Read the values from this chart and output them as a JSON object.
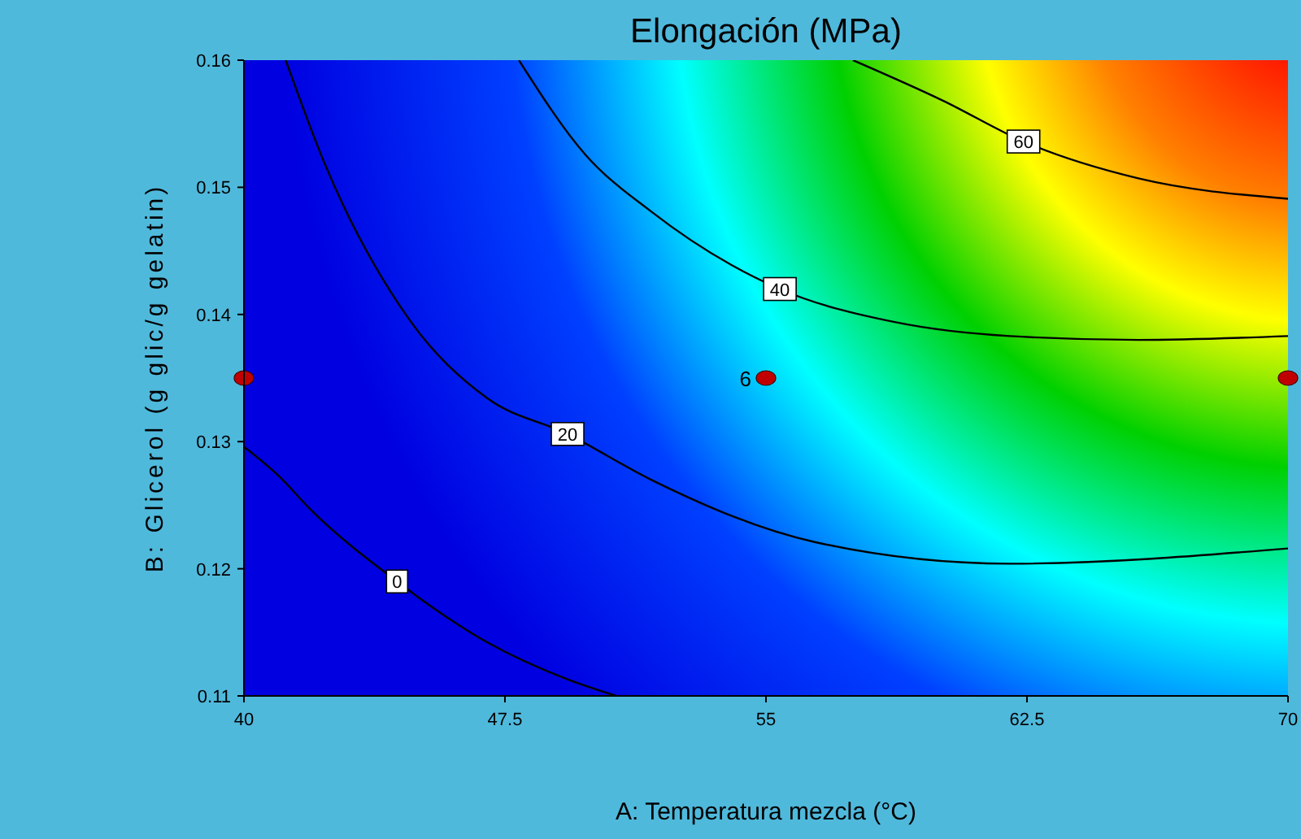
{
  "chart_data": {
    "type": "line",
    "title": "Elongación (MPa)",
    "xlabel": "A: Temperatura mezcla (°C)",
    "ylabel": "B: Glicerol (g glic/g gelatin)",
    "xlim": [
      40,
      70
    ],
    "ylim": [
      0.11,
      0.16
    ],
    "xticks": [
      40,
      47.5,
      55,
      62.5,
      70
    ],
    "yticks": [
      0.11,
      0.12,
      0.13,
      0.14,
      0.15,
      0.16
    ],
    "grid": false,
    "marker": "none",
    "line_style": "solid",
    "series": [
      {
        "name": "0",
        "color": "#000000",
        "x": [
          40,
          41,
          41.9,
          44.4,
          47,
          49.3,
          50.7
        ],
        "values": [
          0.1296,
          0.1273,
          0.1247,
          0.119,
          0.1142,
          0.1113,
          0.11
        ]
      },
      {
        "name": "20",
        "color": "#000000",
        "x": [
          41.2,
          42.3,
          44.7,
          47,
          49.3,
          51.7,
          56.4,
          62,
          70
        ],
        "values": [
          0.16,
          0.152,
          0.1398,
          0.1334,
          0.1306,
          0.127,
          0.1221,
          0.1204,
          0.1216
        ]
      },
      {
        "name": "40",
        "color": "#000000",
        "x": [
          47.9,
          49.8,
          51.7,
          54,
          55.4,
          58.7,
          62,
          65.7,
          70
        ],
        "values": [
          0.16,
          0.1526,
          0.1481,
          0.1439,
          0.142,
          0.1394,
          0.1383,
          0.138,
          0.1383
        ]
      },
      {
        "name": "60",
        "color": "#000000",
        "x": [
          57.5,
          60.1,
          62.4,
          65.7,
          70
        ],
        "values": [
          0.16,
          0.1568,
          0.1536,
          0.1507,
          0.1491
        ]
      },
      {
        "type": "scatter",
        "marker": "circle",
        "color": "#c00000",
        "x": [
          40,
          55,
          70
        ],
        "values": [
          0.135,
          0.135,
          0.135
        ]
      }
    ],
    "annotations": [
      {
        "text": "6",
        "x": 55,
        "y": 0.135
      }
    ]
  }
}
